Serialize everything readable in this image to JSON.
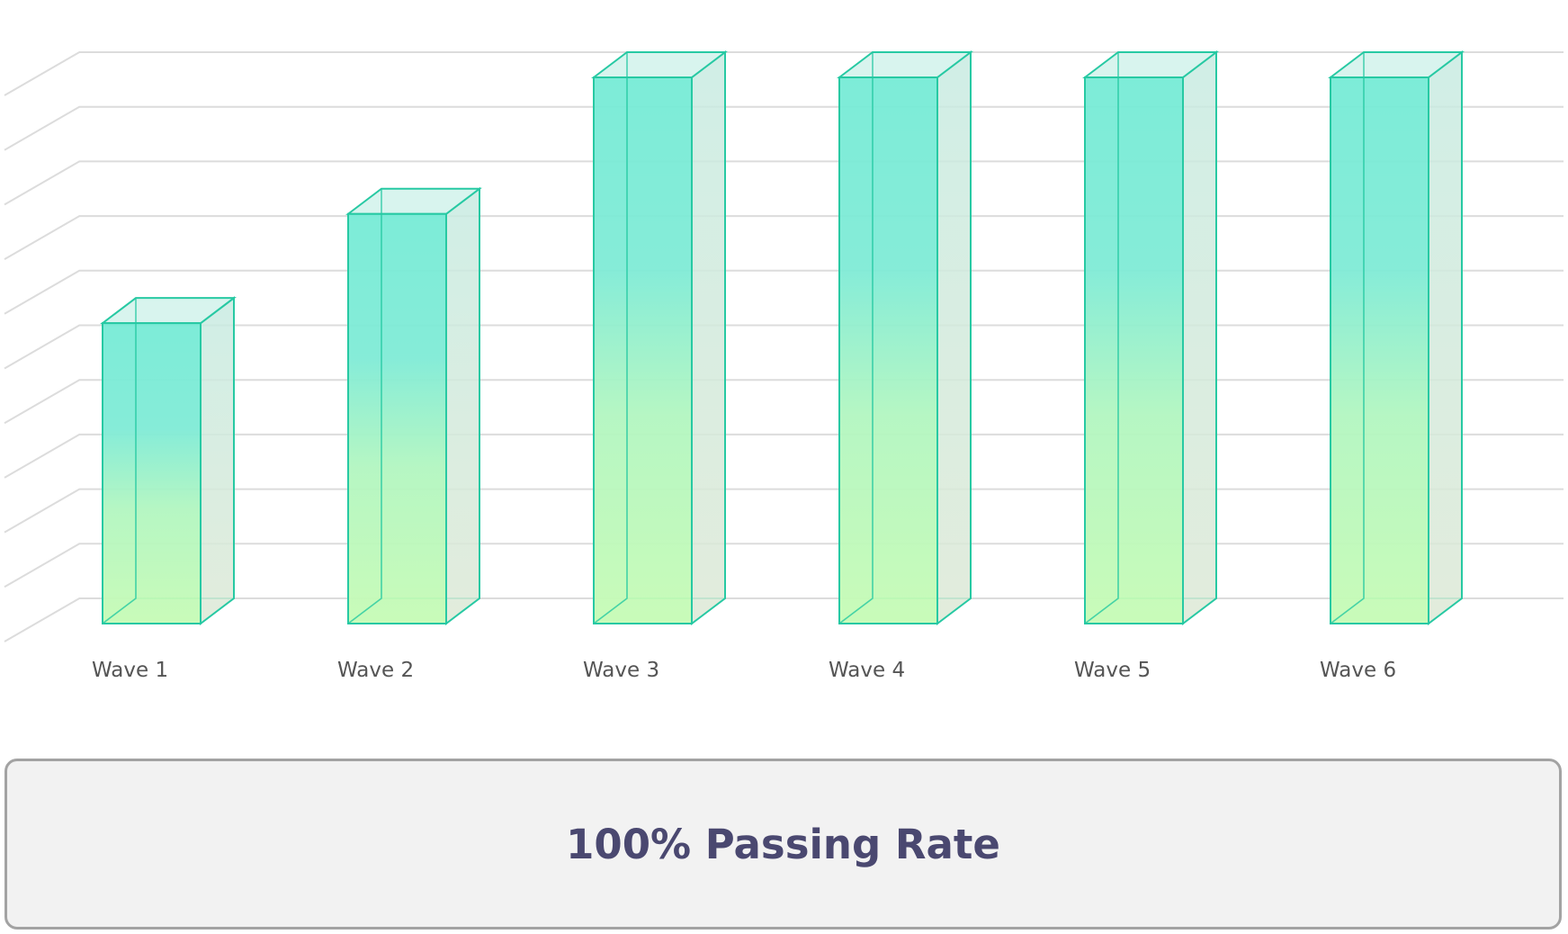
{
  "chart_data": {
    "type": "bar",
    "categories": [
      "Wave 1",
      "Wave 2",
      "Wave 3",
      "Wave 4",
      "Wave 5",
      "Wave 6"
    ],
    "values": [
      5.5,
      7.5,
      10,
      10,
      10,
      10
    ],
    "ylim": [
      0,
      10.83
    ],
    "grid": true,
    "title": "",
    "xlabel": "",
    "ylabel": ""
  },
  "banner": {
    "text": "100% Passing Rate"
  },
  "colors": {
    "bar_top": "#76ebd6",
    "bar_bottom": "#c6fbb5",
    "bar_edge": "#27c9a3",
    "side_face": "#cfe8df",
    "grid": "#dcdcdc",
    "banner_bg": "#f2f2f2",
    "banner_text": "#4a4870"
  }
}
